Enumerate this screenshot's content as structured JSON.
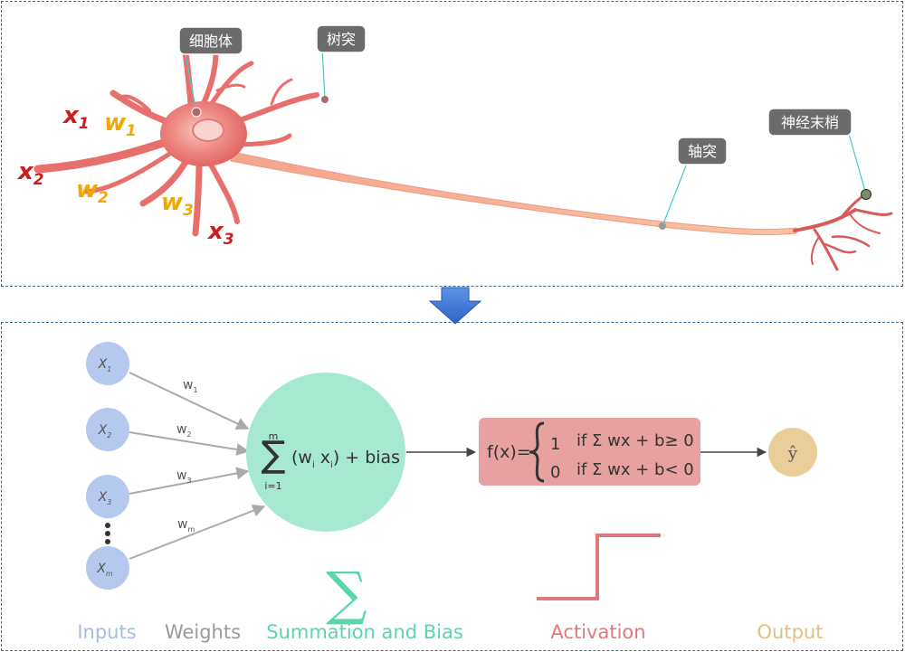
{
  "neuron": {
    "labels": {
      "soma": "细胞体",
      "dendrite": "树突",
      "axon": "轴突",
      "terminal": "神经末梢"
    },
    "inputs": [
      {
        "x": "x",
        "x_sub": "1",
        "w": "w",
        "w_sub": "1"
      },
      {
        "x": "x",
        "x_sub": "2",
        "w": "w",
        "w_sub": "2"
      },
      {
        "x": "x",
        "x_sub": "3",
        "w": "w",
        "w_sub": "3"
      }
    ],
    "colors": {
      "x": "#c81e1e",
      "w": "#f0a800",
      "cell": "#ef7b7b",
      "axon": "#f7b594",
      "callout": "#6b6b6b",
      "leader": "#46c8c8"
    }
  },
  "arrow_color": "#3a78d8",
  "perceptron": {
    "inputs": [
      {
        "label": "X",
        "sub": "1"
      },
      {
        "label": "X",
        "sub": "2"
      },
      {
        "label": "X",
        "sub": "3"
      },
      {
        "label": "X",
        "sub": "m"
      }
    ],
    "weights": [
      {
        "label": "w",
        "sub": "1"
      },
      {
        "label": "w",
        "sub": "2"
      },
      {
        "label": "w",
        "sub": "3"
      },
      {
        "label": "w",
        "sub": "m"
      }
    ],
    "summation": {
      "sigma": "∑",
      "upper": "m",
      "lower": "i=1",
      "term_open": "(w",
      "term_i": "i",
      "term_x": " x",
      "term_i2": "i",
      "term_close": ")",
      "bias": "+ bias"
    },
    "activation": {
      "fx": "f(x)=",
      "case1_value": "1",
      "case1_cond": "if Σ wx + b≥ 0",
      "case2_value": "0",
      "case2_cond": "if Σ wx + b< 0"
    },
    "output": "ŷ",
    "legend_sigma": "∑",
    "legend": {
      "inputs": "Inputs",
      "weights": "Weights",
      "summation": "Summation and Bias",
      "activation": "Activation",
      "output": "Output"
    },
    "colors": {
      "input": "#b5c8ee",
      "summation": "#a6e8d0",
      "activation": "#e8a0a0",
      "output": "#ebcd9a",
      "weights_text": "#9a9a9a",
      "arrows": "#aaaaaa"
    }
  }
}
